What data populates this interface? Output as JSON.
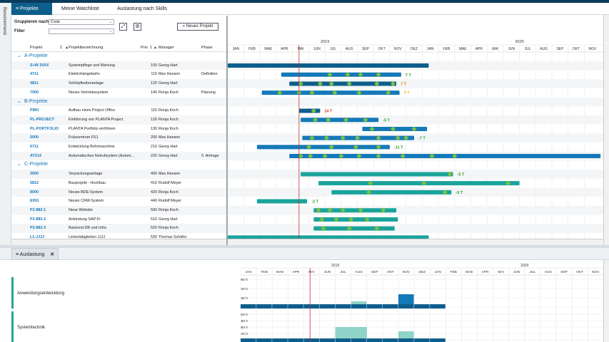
{
  "sidebar_label": "Benutzermenü",
  "tabs": [
    {
      "label": "Projekte",
      "active": true
    },
    {
      "label": "Meine Watchliste",
      "active": false
    },
    {
      "label": "Auslastung nach Skills",
      "active": false
    }
  ],
  "controls": {
    "group_label": "Gruppieren nach",
    "group_value": "Code",
    "filter_label": "Filter",
    "filter_value": "",
    "new_project_label": "Neues Projekt"
  },
  "columns": {
    "project": "Projekt",
    "sort": "2",
    "name": "Projektbezeichnung",
    "prio": "Prio",
    "prio_sort": "1",
    "manager": "Manager",
    "phase": "Phase"
  },
  "years": [
    "2019",
    "2020"
  ],
  "months": [
    "JAN",
    "FEB",
    "MAE",
    "APR",
    "MAI",
    "JUN",
    "JUL",
    "AUG",
    "SEP",
    "OKT",
    "NOV",
    "DEZ",
    "JAN",
    "FEB",
    "MAE",
    "APR",
    "MAI",
    "JUN",
    "JUL",
    "AUG",
    "SEP",
    "OKT",
    "NOV"
  ],
  "rows": [
    {
      "type": "group",
      "label": "A-Projekte"
    },
    {
      "type": "project",
      "code": "S+W 20XX",
      "name": "Systempflege und Wartung",
      "prio": "100",
      "manager": "Georg Hart",
      "phase": "",
      "start": 0,
      "end": 12.4,
      "color": "#0e5e8c",
      "diamonds": [],
      "label": "",
      "label_color": ""
    },
    {
      "type": "project",
      "code": "4711",
      "name": "Elektrohängebahn",
      "prio": "110",
      "manager": "Max Hansen",
      "phase": "Definition",
      "start": 3.3,
      "end": 10.7,
      "color": "#1479b8",
      "diamonds": [
        6.3,
        7.4,
        8.2,
        9.3
      ],
      "label": "7 T",
      "label_color": "#2a9d2a"
    },
    {
      "type": "project",
      "code": "4811",
      "name": "Schlüpfkettenanlage",
      "prio": "120",
      "manager": "Georg Hart",
      "phase": "",
      "start": 3.8,
      "end": 10.4,
      "color": "#0e5e8c",
      "diamonds": [
        4.5,
        5.7,
        6.4,
        7.5,
        9.2,
        10.2
      ],
      "label": "7 T",
      "label_color": "#e57a00"
    },
    {
      "type": "project",
      "code": "7000",
      "name": "Neues Vertriebssystem",
      "prio": "140",
      "manager": "Ronja Koch",
      "phase": "Planung",
      "start": 2.1,
      "end": 10.6,
      "color": "#1479b8",
      "diamonds": [
        3.2,
        4.4,
        5.2,
        6.6,
        8.1,
        9.9
      ],
      "label": "7 T",
      "label_color": "#e5b800"
    },
    {
      "type": "group",
      "label": "B-Projekte"
    },
    {
      "type": "project",
      "code": "PMO",
      "name": "Aufbau eines Project Office",
      "prio": "110",
      "manager": "Ronja Koch",
      "phase": "",
      "start": 4.4,
      "end": 5.7,
      "color": "#0e5e8c",
      "diamonds": [
        5.3
      ],
      "label": "14 T",
      "label_color": "#e03030"
    },
    {
      "type": "project",
      "code": "PL-PROJECT",
      "name": "Einführung von PLANTA Project",
      "prio": "120",
      "manager": "Ronja Koch",
      "phase": "",
      "start": 4.5,
      "end": 9.3,
      "color": "#1479b8",
      "diamonds": [
        5.4,
        6.2,
        7.3,
        8.5
      ],
      "label": "-5 T",
      "label_color": "#2a9d2a"
    },
    {
      "type": "project",
      "code": "PL-PORTFOLIO",
      "name": "PLANTA Portfolio einführen",
      "prio": "130",
      "manager": "Ronja Koch",
      "phase": "",
      "start": 8.3,
      "end": 12.3,
      "color": "#1479b8",
      "diamonds": [
        8.9,
        10.2,
        11.5
      ],
      "label": "",
      "label_color": ""
    },
    {
      "type": "project",
      "code": "5000",
      "name": "Fräszentrum FS1",
      "prio": "200",
      "manager": "Max Hansen",
      "phase": "",
      "start": 4.6,
      "end": 11.5,
      "color": "#1479b8",
      "diamonds": [
        5.2,
        6.1,
        7.1,
        8.0,
        9.3,
        10.5,
        11.0
      ],
      "label": "-7 T",
      "label_color": "#2a9d2a"
    },
    {
      "type": "project",
      "code": "6711",
      "name": "Entwicklung Bohrmaschine",
      "prio": "210",
      "manager": "Georg Hart",
      "phase": "",
      "start": 1.8,
      "end": 10.0,
      "color": "#1479b8",
      "diamonds": [
        5.0,
        6.4,
        7.9,
        9.3
      ],
      "label": "-11 T",
      "label_color": "#2a9d2a"
    },
    {
      "type": "project",
      "code": "AT214",
      "name": "Automatisches Notrufsystem (Autom...",
      "prio": "220",
      "manager": "Georg Hart",
      "phase": "0. Anfrage",
      "start": 3.8,
      "end": 23,
      "color": "#1479b8",
      "diamonds": [
        4.5,
        5.1,
        6.0,
        7.0,
        8.1,
        9.3,
        10.8,
        12.6,
        14.0
      ],
      "label": "",
      "label_color": ""
    },
    {
      "type": "group",
      "label": "C-Projekte"
    },
    {
      "type": "project",
      "code": "3000",
      "name": "Verpackungsanlage",
      "prio": "400",
      "manager": "Max Hansen",
      "phase": "",
      "start": 4.5,
      "end": 13.9,
      "color": "#1aa39b",
      "diamonds": [
        13.7
      ],
      "label": "-5 T",
      "label_color": "#2a9d2a"
    },
    {
      "type": "project",
      "code": "5812",
      "name": "Bauprojekt - Hochbau",
      "prio": "410",
      "manager": "Rudolf Meyer",
      "phase": "",
      "start": 5.6,
      "end": 18.0,
      "color": "#1aa39b",
      "diamonds": [
        8.8,
        12.1,
        17.3
      ],
      "label": "",
      "label_color": ""
    },
    {
      "type": "project",
      "code": "8000",
      "name": "Neues BDE-System",
      "prio": "420",
      "manager": "Ronja Koch",
      "phase": "",
      "start": 6.4,
      "end": 13.8,
      "color": "#1aa39b",
      "diamonds": [
        8.7,
        13.4
      ],
      "label": "-5 T",
      "label_color": "#2a9d2a"
    },
    {
      "type": "project",
      "code": "E001",
      "name": "Neues CRM-System",
      "prio": "440",
      "manager": "Rudolf Meyer",
      "phase": "",
      "start": 1.8,
      "end": 4.9,
      "color": "#1aa39b",
      "diamonds": [],
      "label": "-2 T",
      "label_color": "#2a9d2a"
    },
    {
      "type": "project",
      "code": "P2-882-1",
      "name": "Neue Website",
      "prio": "500",
      "manager": "Ronja Koch",
      "phase": "",
      "start": 5.3,
      "end": 10.4,
      "color": "#1aa39b",
      "diamonds": [
        5.6,
        6.3,
        7.1,
        8.2,
        9.6
      ],
      "label": "",
      "label_color": ""
    },
    {
      "type": "project",
      "code": "P2-882-2",
      "name": "Anbindung SAP-FI",
      "prio": "510",
      "manager": "Georg Hart",
      "phase": "",
      "start": 5.3,
      "end": 10.5,
      "color": "#1aa39b",
      "diamonds": [
        5.8,
        6.7,
        7.6,
        8.6
      ],
      "label": "",
      "label_color": ""
    },
    {
      "type": "project",
      "code": "P2-882-3",
      "name": "Backend DB und Infra",
      "prio": "520",
      "manager": "Ronja Koch",
      "phase": "",
      "start": 5.3,
      "end": 10.3,
      "color": "#1aa39b",
      "diamonds": [
        5.9,
        7.5,
        9.2
      ],
      "label": "",
      "label_color": ""
    },
    {
      "type": "project",
      "code": "L1-JJJJ",
      "name": "Linientätigkeiten JJJJ",
      "prio": "530",
      "manager": "Thomas Schäfer",
      "phase": "",
      "start": 0,
      "end": 12.4,
      "color": "#1aa39b",
      "diamonds": [],
      "label": "",
      "label_color": ""
    }
  ],
  "lower": {
    "tab_label": "Auslastung",
    "sections": [
      {
        "name": "Anwendungsentwicklung",
        "ticks": [
          "960 h",
          "720 h",
          "480 h",
          "240 h"
        ]
      },
      {
        "name": "Systemtechnik",
        "ticks": [
          "600 h",
          "480 h",
          "360 h",
          "240 h",
          "120 h"
        ]
      }
    ]
  },
  "colors": {
    "accent": "#0e5e8c",
    "teal": "#1aa39b",
    "diamond": "#7bc043",
    "today": "#c03030"
  }
}
